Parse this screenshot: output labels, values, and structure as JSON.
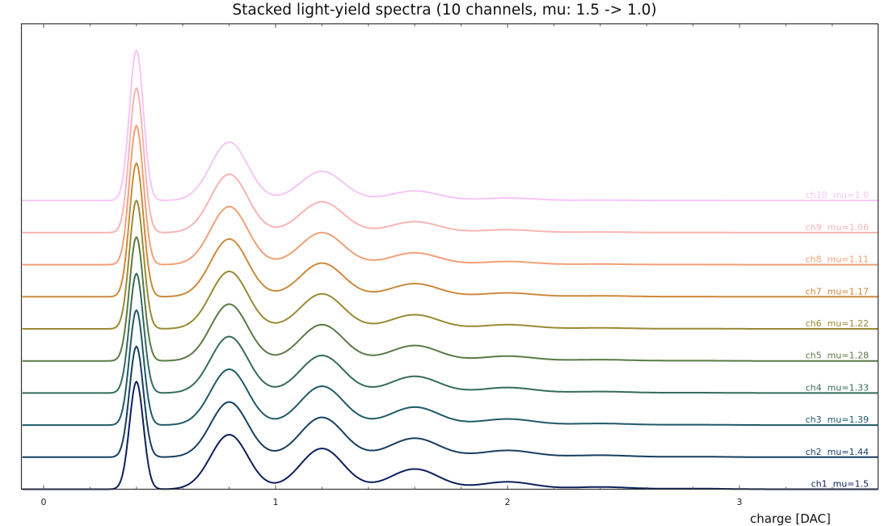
{
  "chart_data": {
    "type": "line",
    "title": "Stacked light-yield spectra (10 channels, mu: 1.5 -> 1.0)",
    "xlabel": "charge [DAC]",
    "ylabel": "",
    "xlim": [
      -0.1,
      3.6
    ],
    "x_ticks": [
      0,
      1,
      2,
      3
    ],
    "x_minor_ticks": [
      0.2,
      0.4,
      0.6,
      0.8,
      1.2,
      1.4,
      1.6,
      1.8,
      2.2,
      2.4,
      2.6,
      2.8,
      3.2,
      3.4
    ],
    "grid": false,
    "legend": "inline labels at right end of each curve",
    "stack_offset": 1.0,
    "peak_positions": [
      0.4,
      0.8,
      1.2,
      1.6,
      2.0,
      2.4,
      2.8
    ],
    "pedestal_sigma": 0.03,
    "pe_sigma": 0.08,
    "series": [
      {
        "name": "ch1",
        "label": "ch1  mu=1.5",
        "mu": 1.5,
        "color": "#0d1f5c",
        "offset": 0,
        "peak_heights": [
          3.35,
          1.7,
          1.27,
          0.63,
          0.23,
          0.07,
          0.02
        ]
      },
      {
        "name": "ch2",
        "label": "ch2  mu=1.44",
        "mu": 1.44,
        "color": "#173f5f",
        "offset": 1,
        "peak_heights": [
          3.45,
          1.72,
          1.24,
          0.59,
          0.21,
          0.06,
          0.015
        ]
      },
      {
        "name": "ch3",
        "label": "ch3  mu=1.39",
        "mu": 1.39,
        "color": "#1f5a68",
        "offset": 2,
        "peak_heights": [
          3.58,
          1.74,
          1.21,
          0.56,
          0.19,
          0.05,
          0.013
        ]
      },
      {
        "name": "ch4",
        "label": "ch4  mu=1.33",
        "mu": 1.33,
        "color": "#356b5c",
        "offset": 3,
        "peak_heights": [
          3.72,
          1.76,
          1.17,
          0.52,
          0.17,
          0.045,
          0.01
        ]
      },
      {
        "name": "ch5",
        "label": "ch5  mu=1.28",
        "mu": 1.28,
        "color": "#5a7a45",
        "offset": 4,
        "peak_heights": [
          3.86,
          1.77,
          1.13,
          0.48,
          0.15,
          0.04,
          0.008
        ]
      },
      {
        "name": "ch6",
        "label": "ch6  mu=1.22",
        "mu": 1.22,
        "color": "#9a8a35",
        "offset": 5,
        "peak_heights": [
          4.0,
          1.79,
          1.09,
          0.44,
          0.13,
          0.03,
          0.006
        ]
      },
      {
        "name": "ch7",
        "label": "ch7  mu=1.17",
        "mu": 1.17,
        "color": "#cc8a3c",
        "offset": 6,
        "peak_heights": [
          4.16,
          1.8,
          1.05,
          0.41,
          0.12,
          0.03,
          0.005
        ]
      },
      {
        "name": "ch8",
        "label": "ch8  mu=1.11",
        "mu": 1.11,
        "color": "#f0a078",
        "offset": 7,
        "peak_heights": [
          4.33,
          1.81,
          1.0,
          0.37,
          0.1,
          0.02,
          0.004
        ]
      },
      {
        "name": "ch9",
        "label": "ch9  mu=1.06",
        "mu": 1.06,
        "color": "#f8b4b4",
        "offset": 8,
        "peak_heights": [
          4.5,
          1.82,
          0.96,
          0.34,
          0.09,
          0.02,
          0.003
        ]
      },
      {
        "name": "ch10",
        "label": "ch10  mu=1.0",
        "mu": 1.0,
        "color": "#f5c6f5",
        "offset": 9,
        "peak_heights": [
          4.68,
          1.82,
          0.91,
          0.3,
          0.08,
          0.015,
          0.002
        ]
      }
    ]
  },
  "axes": {
    "tick_labels": [
      "0",
      "1",
      "2",
      "3"
    ]
  }
}
